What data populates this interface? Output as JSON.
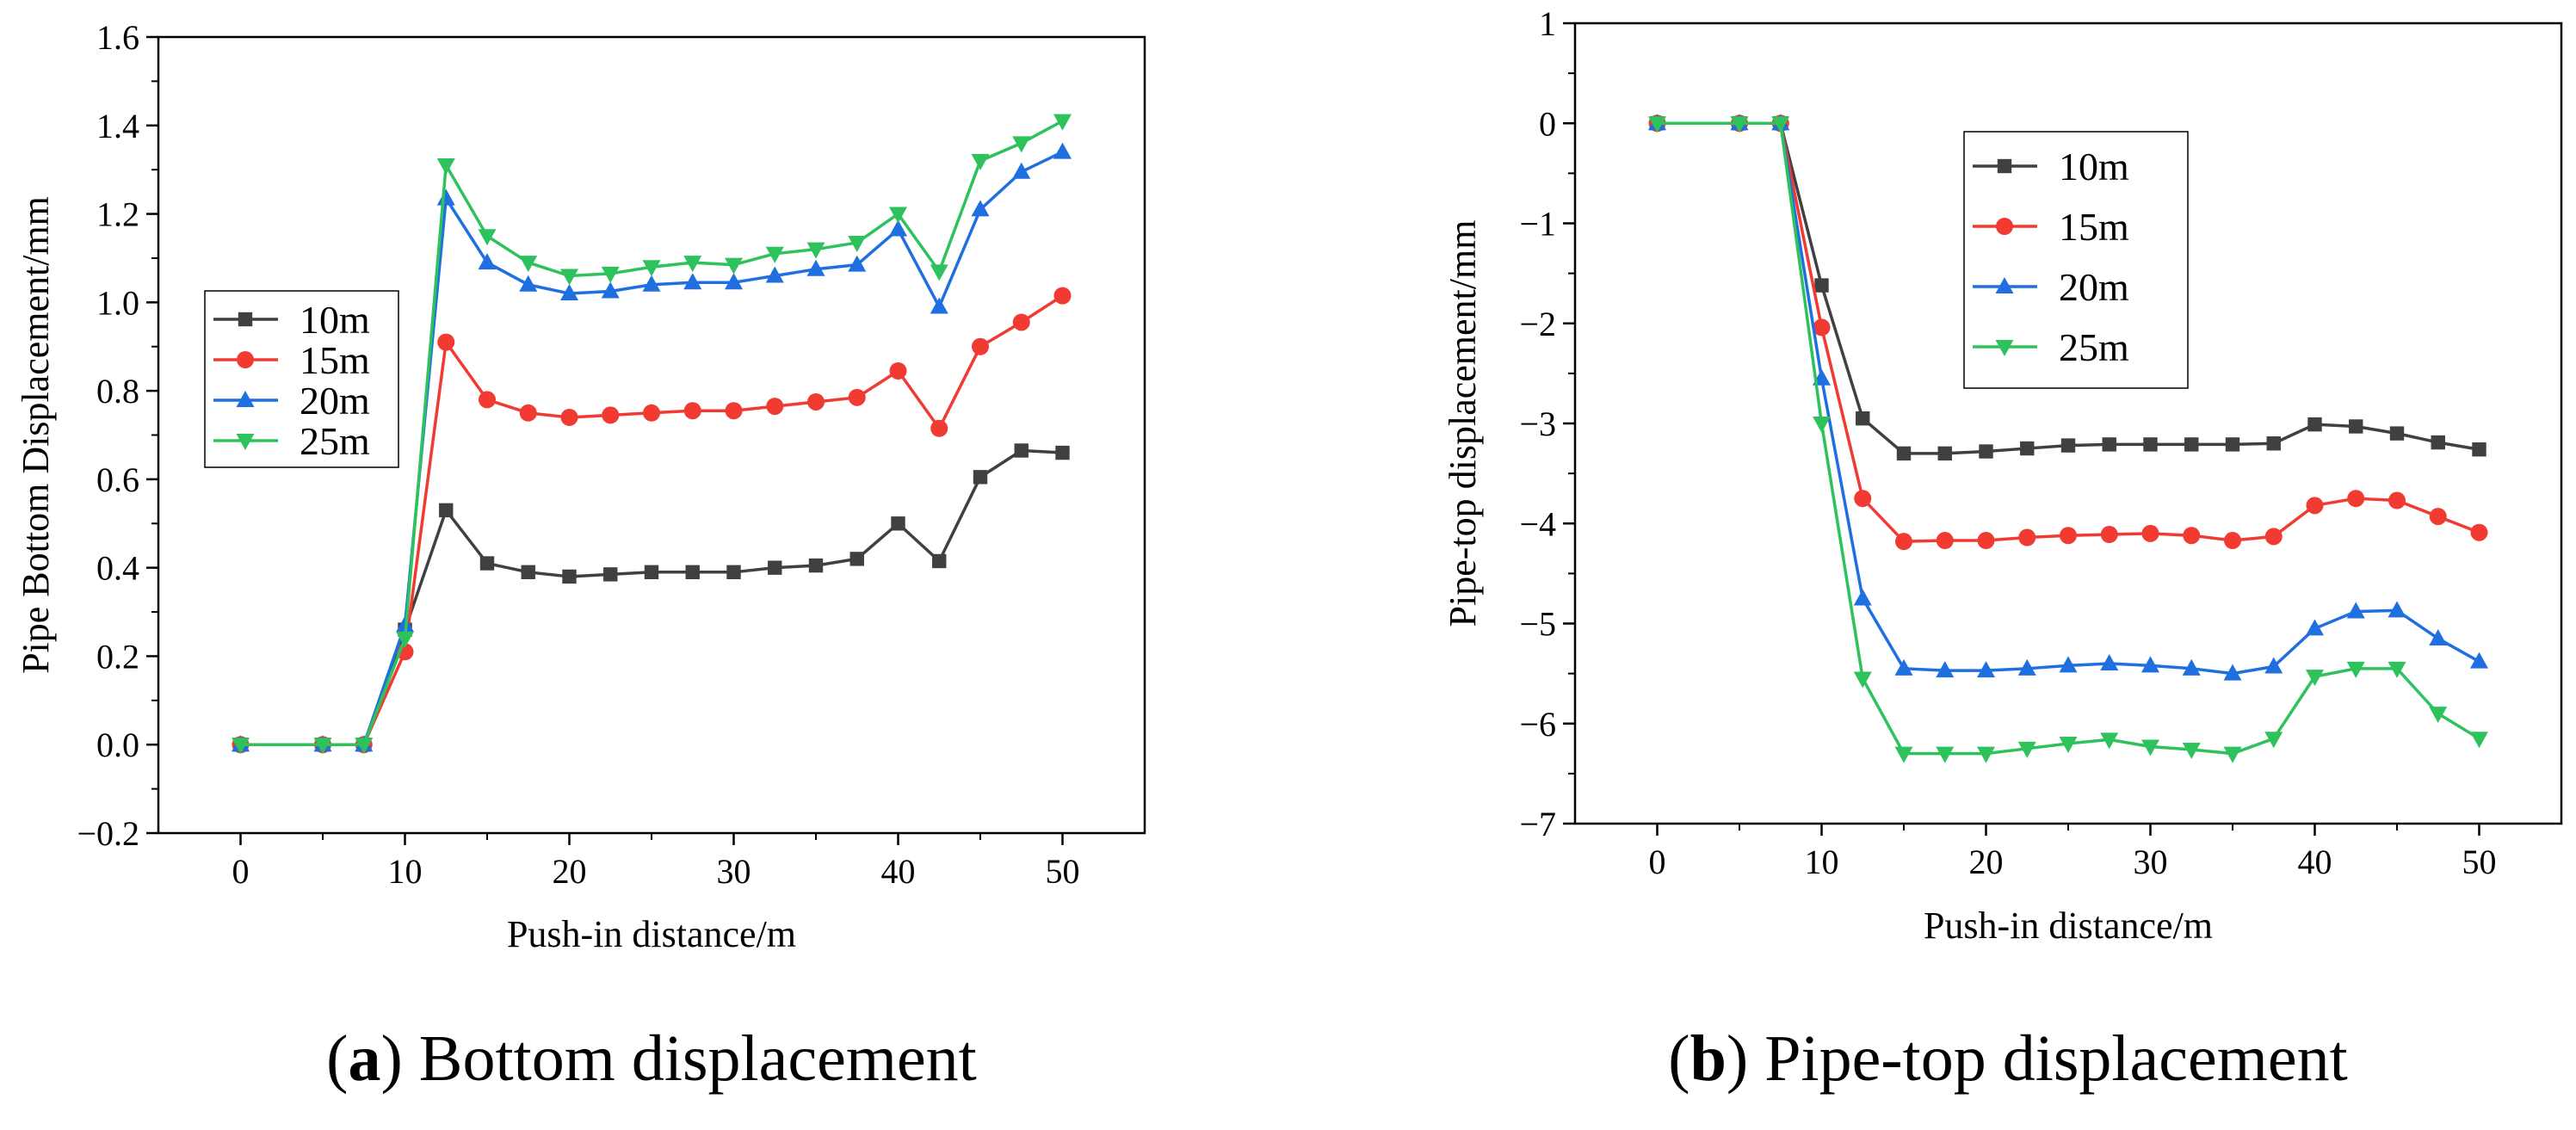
{
  "chart_data": [
    {
      "type": "line",
      "title": "",
      "xlabel": "Push-in distance/m",
      "ylabel": "Pipe Bottom Displacement/mm",
      "xlim": [
        -5,
        55
      ],
      "ylim": [
        -0.2,
        1.6
      ],
      "xticks": [
        0,
        10,
        20,
        30,
        40,
        50
      ],
      "yticks": [
        -0.2,
        0.0,
        0.2,
        0.4,
        0.6,
        0.8,
        1.0,
        1.2,
        1.4,
        1.6
      ],
      "ytick_labels": [
        "−0.2",
        "0.0",
        "0.2",
        "0.4",
        "0.6",
        "0.8",
        "1.0",
        "1.2",
        "1.4",
        "1.6"
      ],
      "x": [
        0,
        5,
        7.5,
        10,
        12.5,
        15,
        17.5,
        20,
        22.5,
        25,
        27.5,
        30,
        32.5,
        35,
        37.5,
        40,
        42.5,
        45,
        47.5,
        50
      ],
      "legend_position": "left-middle",
      "grid": false,
      "caption": {
        "letter": "a",
        "text": "Bottom displacement"
      },
      "series": [
        {
          "name": "10m",
          "color": "#404040",
          "marker": "square",
          "values": [
            0,
            0,
            0,
            0.26,
            0.53,
            0.41,
            0.39,
            0.38,
            0.385,
            0.39,
            0.39,
            0.39,
            0.4,
            0.405,
            0.42,
            0.5,
            0.415,
            0.605,
            0.665,
            0.66
          ]
        },
        {
          "name": "15m",
          "color": "#f03a32",
          "marker": "circle",
          "values": [
            0,
            0,
            0,
            0.21,
            0.91,
            0.78,
            0.75,
            0.74,
            0.745,
            0.75,
            0.755,
            0.755,
            0.765,
            0.775,
            0.785,
            0.845,
            0.715,
            0.9,
            0.955,
            1.015
          ]
        },
        {
          "name": "20m",
          "color": "#1f6fe0",
          "marker": "triangle-up",
          "values": [
            0,
            0,
            0,
            0.27,
            1.235,
            1.09,
            1.04,
            1.02,
            1.025,
            1.04,
            1.045,
            1.045,
            1.06,
            1.075,
            1.085,
            1.165,
            0.99,
            1.21,
            1.295,
            1.34
          ]
        },
        {
          "name": "25m",
          "color": "#2ec25c",
          "marker": "triangle-down",
          "values": [
            0,
            0,
            0,
            0.24,
            1.31,
            1.15,
            1.09,
            1.06,
            1.065,
            1.08,
            1.09,
            1.085,
            1.11,
            1.12,
            1.135,
            1.2,
            1.07,
            1.32,
            1.36,
            1.41
          ]
        }
      ]
    },
    {
      "type": "line",
      "title": "",
      "xlabel": "Push-in distance/m",
      "ylabel": "Pipe-top displacement/mm",
      "xlim": [
        -5,
        55
      ],
      "ylim": [
        -7,
        1
      ],
      "xticks": [
        0,
        10,
        20,
        30,
        40,
        50
      ],
      "yticks": [
        -7,
        -6,
        -5,
        -4,
        -3,
        -2,
        -1,
        0,
        1
      ],
      "ytick_labels": [
        "−7",
        "−6",
        "−5",
        "−4",
        "−3",
        "−2",
        "−1",
        "0",
        "1"
      ],
      "x": [
        0,
        5,
        7.5,
        10,
        12.5,
        15,
        17.5,
        20,
        22.5,
        25,
        27.5,
        30,
        32.5,
        35,
        37.5,
        40,
        42.5,
        45,
        47.5,
        50
      ],
      "legend_position": "top-left",
      "grid": false,
      "caption": {
        "letter": "b",
        "text": "Pipe-top displacement"
      },
      "series": [
        {
          "name": "10m",
          "color": "#404040",
          "marker": "square",
          "values": [
            0,
            0,
            0,
            -1.62,
            -2.95,
            -3.3,
            -3.3,
            -3.28,
            -3.25,
            -3.22,
            -3.21,
            -3.21,
            -3.21,
            -3.21,
            -3.2,
            -3.01,
            -3.03,
            -3.1,
            -3.19,
            -3.26
          ]
        },
        {
          "name": "15m",
          "color": "#f03a32",
          "marker": "circle",
          "values": [
            0,
            0,
            0,
            -2.04,
            -3.75,
            -4.18,
            -4.17,
            -4.17,
            -4.14,
            -4.12,
            -4.11,
            -4.1,
            -4.12,
            -4.17,
            -4.13,
            -3.82,
            -3.75,
            -3.77,
            -3.93,
            -4.09
          ]
        },
        {
          "name": "20m",
          "color": "#1f6fe0",
          "marker": "triangle-up",
          "values": [
            0,
            0,
            0,
            -2.55,
            -4.75,
            -5.45,
            -5.47,
            -5.47,
            -5.45,
            -5.42,
            -5.4,
            -5.42,
            -5.45,
            -5.5,
            -5.43,
            -5.05,
            -4.88,
            -4.87,
            -5.15,
            -5.38
          ]
        },
        {
          "name": "25m",
          "color": "#2ec25c",
          "marker": "triangle-down",
          "values": [
            0,
            0,
            0,
            -3.0,
            -5.55,
            -6.3,
            -6.3,
            -6.3,
            -6.25,
            -6.2,
            -6.16,
            -6.23,
            -6.26,
            -6.3,
            -6.15,
            -5.53,
            -5.45,
            -5.45,
            -5.9,
            -6.15
          ]
        }
      ]
    }
  ]
}
